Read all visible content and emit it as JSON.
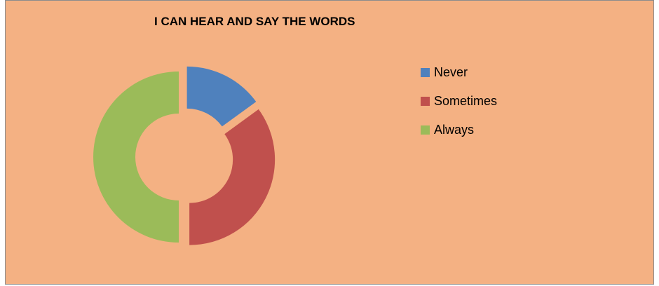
{
  "chart_data": {
    "type": "donut",
    "title": "I CAN HEAR AND SAY THE WORDS",
    "categories": [
      "Never",
      "Sometimes",
      "Always"
    ],
    "values": [
      15,
      35,
      50
    ],
    "colors": [
      "#4f81bd",
      "#c0504d",
      "#9bbb59"
    ],
    "legend_position": "right",
    "exploded": true
  }
}
